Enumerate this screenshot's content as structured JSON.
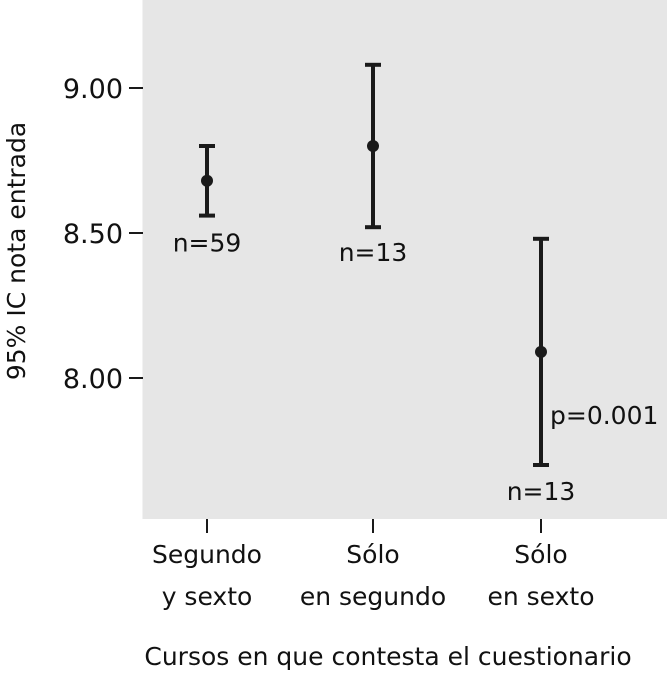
{
  "chart_data": {
    "type": "errorbar",
    "xlabel": "Cursos en que contesta el cuestionario",
    "ylabel": "95% IC nota entrada",
    "ylim": [
      7.55,
      9.3
    ],
    "yticks": [
      "9.00",
      "8.50",
      "8.00"
    ],
    "ytick_values": [
      9.0,
      8.5,
      8.0
    ],
    "grid": false,
    "background": "#e6e6e6",
    "mark_color": "#1a1a1a",
    "categories": [
      {
        "line1": "Segundo",
        "line2": "y sexto"
      },
      {
        "line1": "Sólo",
        "line2": "en segundo"
      },
      {
        "line1": "Sólo",
        "line2": "en sexto"
      }
    ],
    "points": [
      {
        "mean": 8.68,
        "lower": 8.56,
        "upper": 8.8,
        "label": "n=59"
      },
      {
        "mean": 8.8,
        "lower": 8.52,
        "upper": 9.08,
        "label": "n=13"
      },
      {
        "mean": 8.09,
        "lower": 7.7,
        "upper": 8.48,
        "label": "n=13",
        "extra": "p=0.001"
      }
    ]
  }
}
